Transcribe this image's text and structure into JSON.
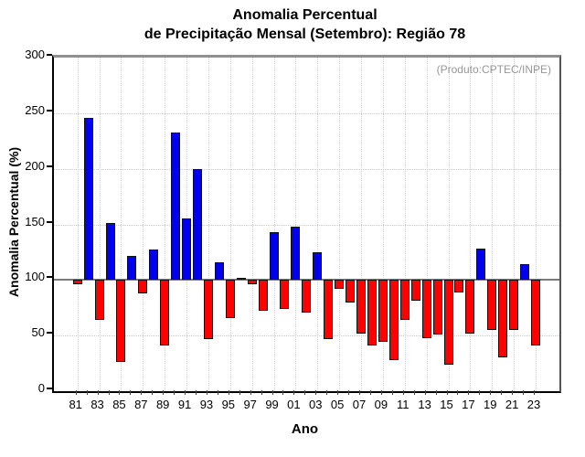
{
  "title": {
    "line1": "Anomalia Percentual",
    "line2": "de Precipitação Mensal (Setembro): Região 78"
  },
  "annotation": "(Produto:CPTEC/INPE)",
  "chart_data": {
    "type": "bar",
    "title": "Anomalia Percentual de Precipitação Mensal (Setembro): Região 78",
    "xlabel": "Ano",
    "ylabel": "Anomalia Percentual (%)",
    "ylim": [
      0,
      300
    ],
    "yticks": [
      0,
      50,
      100,
      150,
      200,
      250,
      300
    ],
    "baseline": 100,
    "grid": "dotted",
    "legend_position": "none",
    "categories": [
      "81",
      "82",
      "83",
      "84",
      "85",
      "86",
      "87",
      "88",
      "89",
      "90",
      "91",
      "92",
      "93",
      "94",
      "95",
      "96",
      "97",
      "98",
      "99",
      "00",
      "01",
      "02",
      "03",
      "04",
      "05",
      "06",
      "07",
      "08",
      "09",
      "10",
      "11",
      "12",
      "13",
      "14",
      "15",
      "16",
      "17",
      "18",
      "19",
      "20",
      "21",
      "22",
      "23"
    ],
    "x_tick_labels": [
      "81",
      "83",
      "85",
      "87",
      "89",
      "91",
      "93",
      "95",
      "97",
      "99",
      "01",
      "03",
      "05",
      "07",
      "09",
      "11",
      "13",
      "15",
      "17",
      "19",
      "21",
      "23"
    ],
    "values": [
      96,
      246,
      64,
      151,
      26,
      122,
      88,
      127,
      41,
      233,
      155,
      200,
      47,
      116,
      66,
      102,
      96,
      72,
      143,
      74,
      148,
      71,
      125,
      47,
      92,
      80,
      52,
      41,
      44,
      28,
      64,
      81,
      48,
      51,
      24,
      89,
      52,
      128,
      55,
      30,
      55,
      114,
      41
    ],
    "color_rule": "blue if value > baseline else red",
    "bar_color_above": "#0000EE",
    "bar_color_below": "#FF0000",
    "bar_border_color": "#111111",
    "baseline_line_color": "#7a7a7a"
  }
}
